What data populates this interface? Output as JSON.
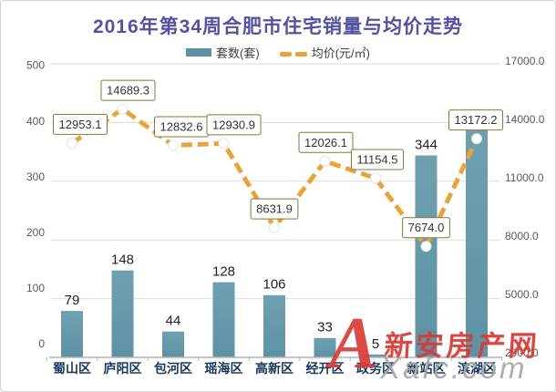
{
  "title": "2016年第34周合肥市住宅销量与均价走势",
  "legend": [
    {
      "label": "套数(套)",
      "type": "bar"
    },
    {
      "label": "均价(元/㎡)",
      "type": "line"
    }
  ],
  "chart_data": {
    "type": "combo-bar-line",
    "title": "2016年第34周合肥市住宅销量与均价走势",
    "categories": [
      "蜀山区",
      "庐阳区",
      "包河区",
      "瑶海区",
      "高新区",
      "经开区",
      "政务区",
      "新站区",
      "滨湖区"
    ],
    "series": [
      {
        "name": "套数(套)",
        "type": "bar",
        "y_axis": "left",
        "values": [
          79,
          148,
          44,
          128,
          106,
          33,
          5,
          344,
          392
        ]
      },
      {
        "name": "均价(元/㎡)",
        "type": "line",
        "y_axis": "right",
        "values": [
          12953.1,
          14689.3,
          12832.6,
          12930.9,
          8631.9,
          12026.1,
          11154.5,
          7674.0,
          13172.2
        ]
      }
    ],
    "left_axis": {
      "min": 0,
      "max": 500,
      "step": 100,
      "ticks": [
        "500",
        "400",
        "300",
        "200",
        "100",
        "0"
      ]
    },
    "right_axis": {
      "min": 2000,
      "max": 17000,
      "step": 3000,
      "ticks": [
        "17000.0",
        "14000.0",
        "11000.0",
        "8000.0",
        "5000.0",
        "2000.0"
      ]
    },
    "grid": true,
    "legend_position": "top",
    "colors": {
      "bar": "#5D92A4",
      "bar_light": "#6FA0B0",
      "line": "#E8A33C",
      "title": "#5451A1",
      "category_label": "#17375D",
      "tick_label": "#595959",
      "bar_value_label": "#1F1F1F",
      "grid": "#DBDBDB",
      "axis": "#B3B3B3",
      "label_box_border": "#8C7533",
      "label_box_text": "#333333"
    }
  },
  "watermark": {
    "logo": "A",
    "brand": "新安房产网",
    "domain": "Xafc.com",
    "red": "#D93B36",
    "gray": "#A6A6A6"
  }
}
